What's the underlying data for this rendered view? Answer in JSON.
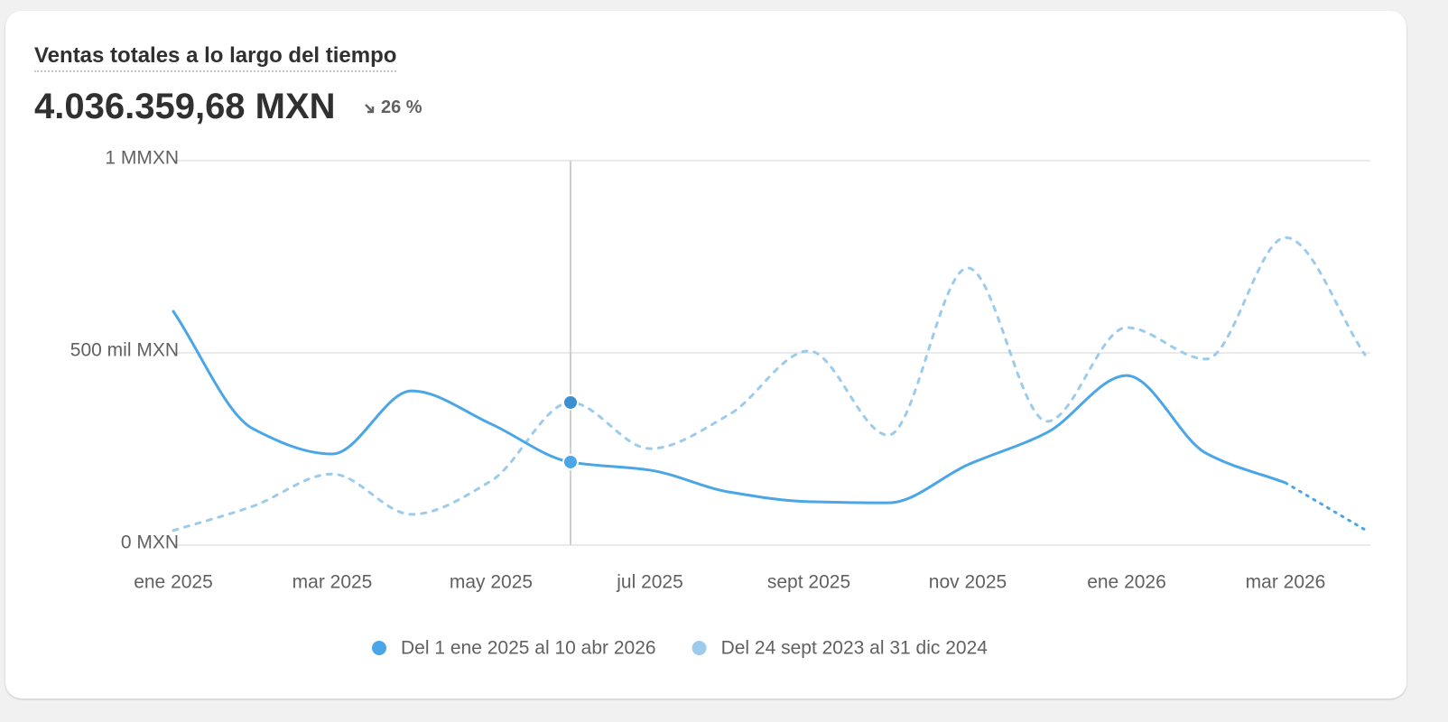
{
  "header": {
    "title": "Ventas totales a lo largo del tiempo",
    "total": "4.036.359,68 MXN",
    "change": "26 %"
  },
  "chart_data": {
    "type": "line",
    "categories": [
      "ene 2025",
      null,
      "mar 2025",
      null,
      "may 2025",
      null,
      "jul 2025",
      null,
      "sept 2025",
      null,
      "nov 2025",
      null,
      "ene 2026",
      null,
      "mar 2026",
      null
    ],
    "series": [
      {
        "name": "Del 1 ene 2025 al 10 abr 2026",
        "color": "#4aa6e6",
        "dashed_last_segment": true,
        "values": [
          608000,
          303000,
          237000,
          401000,
          315000,
          216000,
          195000,
          138000,
          113000,
          110000,
          209000,
          293000,
          441000,
          239000,
          162000,
          40000
        ]
      },
      {
        "name": "Del 24 sept 2023 al 31 dic 2024",
        "color": "#9ccbeb",
        "dashed": true,
        "values": [
          38000,
          101000,
          185000,
          80000,
          167000,
          371000,
          251000,
          340000,
          505000,
          286000,
          721000,
          322000,
          566000,
          484000,
          800000,
          495000
        ]
      }
    ],
    "ylim": [
      0,
      1000000
    ],
    "yticks": [
      {
        "value": 0,
        "label": "0 MXN"
      },
      {
        "value": 500000,
        "label": "500 mil MXN"
      },
      {
        "value": 1000000,
        "label": "1 MMXN"
      }
    ],
    "grid": true,
    "highlight_index": 5,
    "legend": "bottom"
  }
}
